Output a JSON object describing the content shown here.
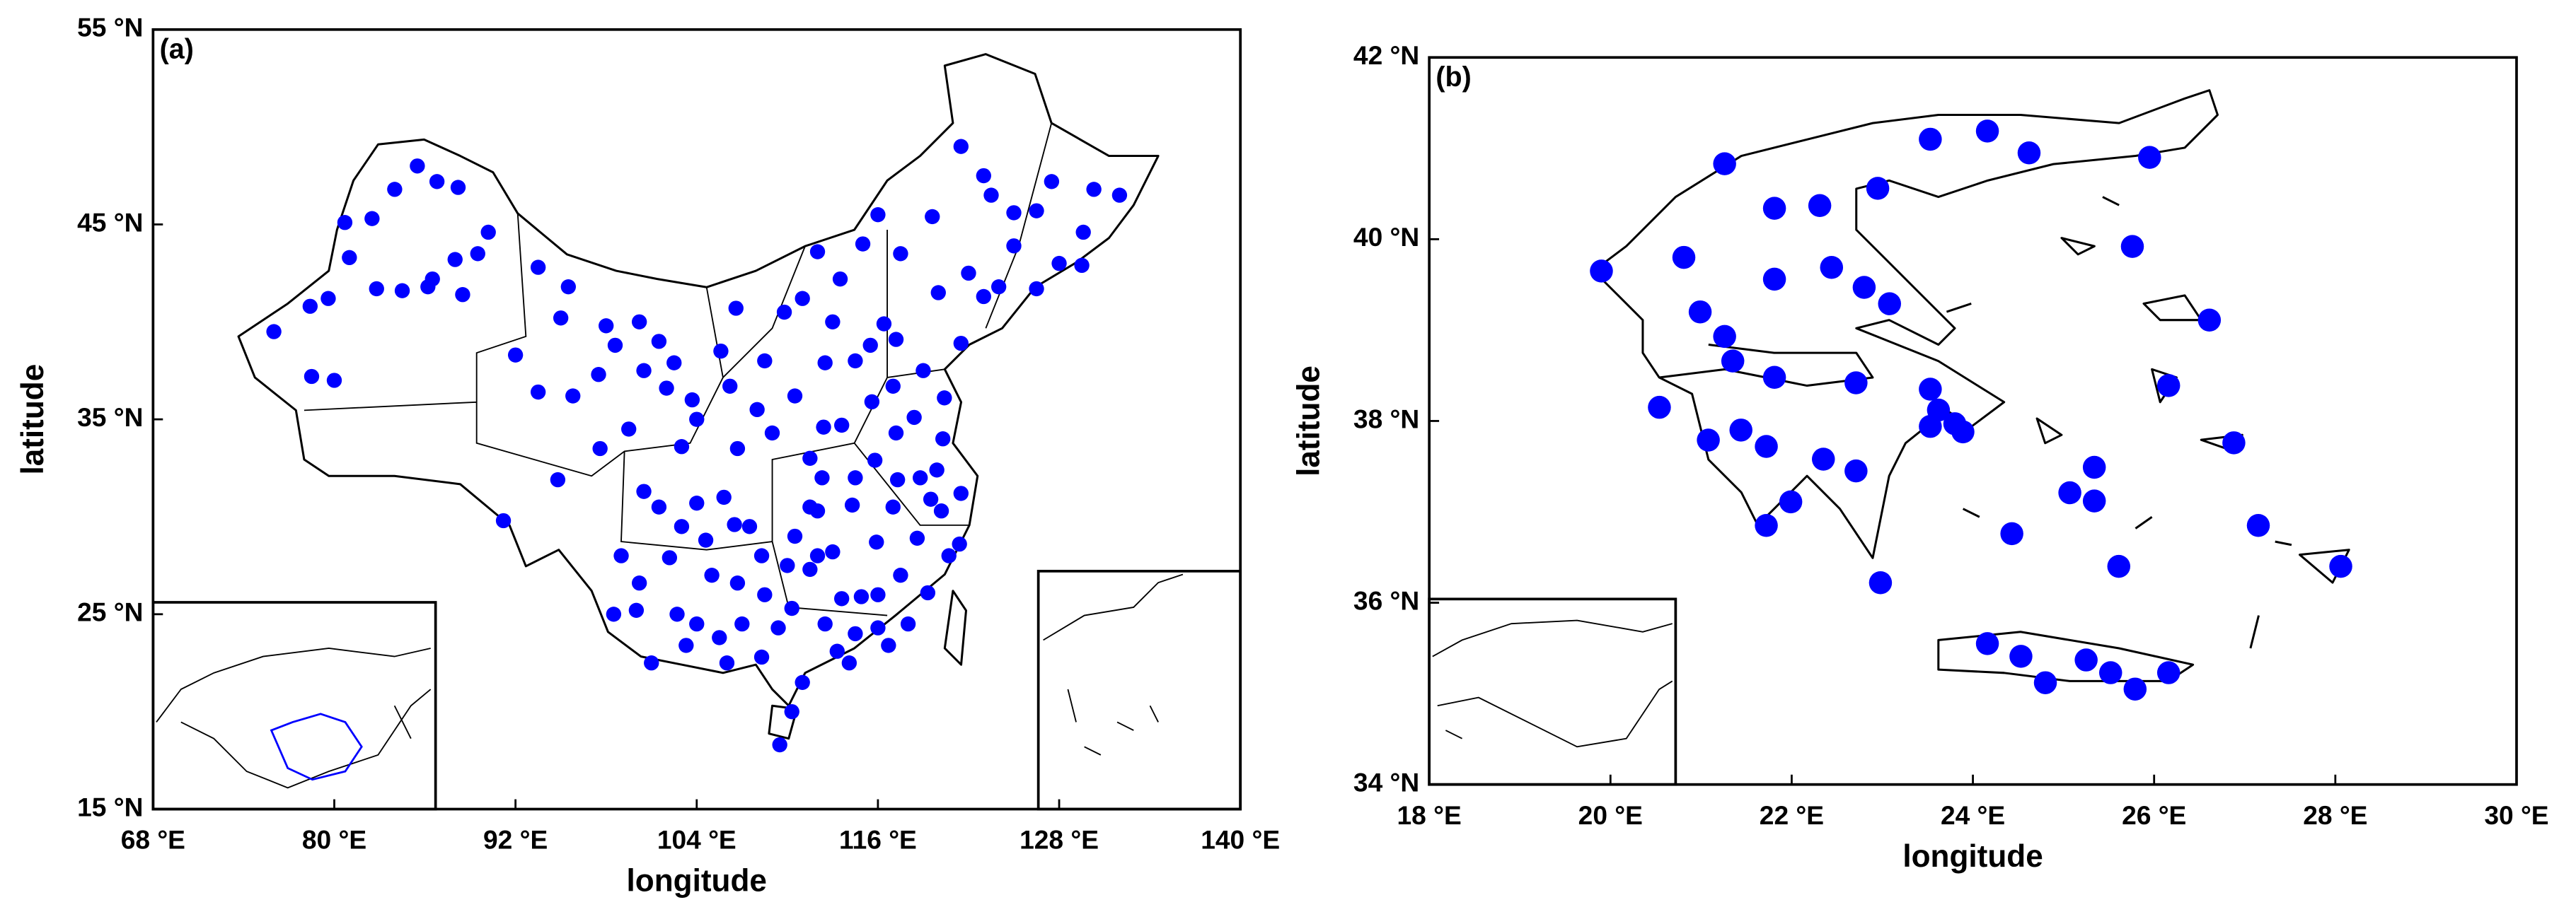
{
  "chart_data": [
    {
      "type": "scatter",
      "panel_label": "(a)",
      "xlabel": "longitude",
      "ylabel": "latitude",
      "color": "#0000ff",
      "xlim": [
        68,
        140
      ],
      "ylim": [
        15,
        55
      ],
      "xticks": [
        {
          "value": 68,
          "label": "68 °E"
        },
        {
          "value": 80,
          "label": "80 °E"
        },
        {
          "value": 92,
          "label": "92 °E"
        },
        {
          "value": 104,
          "label": "104 °E"
        },
        {
          "value": 116,
          "label": "116 °E"
        },
        {
          "value": 128,
          "label": "128 °E"
        },
        {
          "value": 140,
          "label": "140 °E"
        }
      ],
      "yticks": [
        {
          "value": 15,
          "label": "15 °N"
        },
        {
          "value": 25,
          "label": "25 °N"
        },
        {
          "value": 35,
          "label": "35 °N"
        },
        {
          "value": 45,
          "label": "45 °N"
        },
        {
          "value": 55,
          "label": "55 °N"
        }
      ],
      "x": [
        80.7,
        82.5,
        84,
        85.5,
        86.8,
        88.2,
        90.2,
        88,
        86.5,
        84.5,
        81,
        79.6,
        78.4,
        76,
        80,
        78.5,
        82.8,
        86.2,
        88.5,
        89.5,
        93.5,
        95.5,
        92,
        93.5,
        95.8,
        97.5,
        98.6,
        100.5,
        102,
        97.6,
        91.2,
        94.8,
        99.5,
        100.5,
        101.5,
        103,
        104,
        105.6,
        106.2,
        103.7,
        101.5,
        100.2,
        102.5,
        98,
        95,
        106.6,
        109.8,
        111,
        112,
        113.5,
        115,
        116,
        117.5,
        119.6,
        121.5,
        123,
        120,
        122,
        123.5,
        125,
        126.5,
        127.5,
        129.6,
        130.3,
        132,
        128,
        125,
        124,
        121.5,
        123,
        126.5,
        129.5,
        116.4,
        117.2,
        114.5,
        112.5,
        113,
        115.5,
        117,
        119,
        120.4,
        118.4,
        115.6,
        113.6,
        112.4,
        114.3,
        111.5,
        109,
        108,
        106.7,
        110.5,
        108.5,
        104,
        105.8,
        103,
        102.2,
        100.2,
        102.7,
        100,
        103.3,
        105,
        106.7,
        107.5,
        106.5,
        108.3,
        104.6,
        98.5,
        101,
        104,
        99,
        108.3,
        110.3,
        109.4,
        113.3,
        114.1,
        116.7,
        111,
        110.3,
        109.5,
        112,
        113,
        111.5,
        113.6,
        115.9,
        114.9,
        117,
        117.3,
        118.8,
        120.2,
        121.5,
        119.3,
        118,
        120.7,
        118.6,
        117.5,
        116,
        119.9,
        120.3,
        117.2,
        115.8,
        114.5,
        112,
        110.5,
        112.3,
        121.4,
        119.5,
        116,
        114.5,
        112.5,
        107,
        106,
        105.5,
        108.5,
        110,
        111.5
      ],
      "y": [
        45.1,
        45.3,
        46.8,
        48,
        47.2,
        46.9,
        44.6,
        43.2,
        42.2,
        41.6,
        43.3,
        41.2,
        40.8,
        39.5,
        37,
        37.2,
        41.7,
        41.8,
        41.4,
        43.5,
        42.8,
        41.8,
        38.3,
        36.4,
        36.2,
        37.3,
        38.8,
        37.5,
        36.6,
        33.5,
        29.8,
        31.9,
        34.5,
        31.3,
        30.5,
        33.6,
        35,
        38.5,
        36.7,
        36,
        39,
        40,
        37.9,
        39.8,
        40.2,
        40.7,
        40.5,
        41.2,
        43.6,
        42.2,
        44,
        45.5,
        43.5,
        45.4,
        49,
        47.5,
        41.5,
        42.5,
        46.5,
        45.6,
        45.7,
        47.2,
        44.6,
        46.8,
        46.5,
        43,
        43.9,
        41.8,
        38.9,
        41.3,
        41.7,
        42.9,
        39.9,
        39.1,
        38,
        37.9,
        40,
        38.8,
        36.7,
        37.5,
        36.1,
        35.1,
        35.9,
        34.7,
        34.6,
        30.6,
        33,
        34.3,
        35.5,
        33.5,
        36.2,
        38,
        30.7,
        31,
        29.5,
        27.9,
        26.6,
        25,
        25.2,
        23.4,
        27,
        26.6,
        29.5,
        29.6,
        28,
        28.8,
        25,
        22.5,
        24.5,
        28,
        22.8,
        25.3,
        24.3,
        23.1,
        22.5,
        23.4,
        21.5,
        20,
        18.3,
        28,
        28.2,
        27.3,
        25.8,
        28.7,
        25.9,
        30.5,
        31.9,
        32,
        30.3,
        31.2,
        26.1,
        24.5,
        28,
        28.9,
        27,
        26,
        32.4,
        34,
        34.3,
        32.9,
        32,
        30.3,
        29,
        32,
        28.6,
        30.9,
        24.3,
        24,
        24.5,
        24.5,
        22.5,
        23.8,
        26,
        27.5,
        30.5
      ]
    },
    {
      "type": "scatter",
      "panel_label": "(b)",
      "xlabel": "longitude",
      "ylabel": "latitude",
      "color": "#0000ff",
      "xlim": [
        18,
        30
      ],
      "ylim": [
        34,
        42
      ],
      "xticks": [
        {
          "value": 18,
          "label": "18 °E"
        },
        {
          "value": 20,
          "label": "20 °E"
        },
        {
          "value": 22,
          "label": "22 °E"
        },
        {
          "value": 24,
          "label": "24 °E"
        },
        {
          "value": 26,
          "label": "26 °E"
        },
        {
          "value": 28,
          "label": "28 °E"
        },
        {
          "value": 30,
          "label": "30 °E"
        }
      ],
      "yticks": [
        {
          "value": 34,
          "label": "34 °N"
        },
        {
          "value": 36,
          "label": "36 °N"
        },
        {
          "value": 38,
          "label": "38 °N"
        },
        {
          "value": 40,
          "label": "40 °N"
        },
        {
          "value": 42,
          "label": "42 °N"
        }
      ],
      "x": [
        19.9,
        20.81,
        20.99,
        21.26,
        21.35,
        21.81,
        23.08,
        22.8,
        22.44,
        21.81,
        21.26,
        21.81,
        22.31,
        22.95,
        23.53,
        24.16,
        24.62,
        25.95,
        25.76,
        26.61,
        26.16,
        26.88,
        28.06,
        27.15,
        25.34,
        25.07,
        25.34,
        25.61,
        24.43,
        22.98,
        21.99,
        21.72,
        22.71,
        22.35,
        22.71,
        23.53,
        23.62,
        23.8,
        23.53,
        23.89,
        21.72,
        21.44,
        21.08,
        20.54,
        24.16,
        24.53,
        24.8,
        25.25,
        25.52,
        25.79,
        26.16
      ],
      "y": [
        39.65,
        39.8,
        39.2,
        38.93,
        38.66,
        38.48,
        39.29,
        39.47,
        39.69,
        39.56,
        40.83,
        40.34,
        40.37,
        40.56,
        41.1,
        41.19,
        40.95,
        40.9,
        39.92,
        39.11,
        38.39,
        37.76,
        36.4,
        36.85,
        37.49,
        37.21,
        37.12,
        36.4,
        36.76,
        36.22,
        37.11,
        36.85,
        37.45,
        37.58,
        38.42,
        38.35,
        38.12,
        37.97,
        37.94,
        37.88,
        37.72,
        37.9,
        37.79,
        38.15,
        35.55,
        35.41,
        35.12,
        35.37,
        35.23,
        35.05,
        35.23
      ]
    }
  ]
}
